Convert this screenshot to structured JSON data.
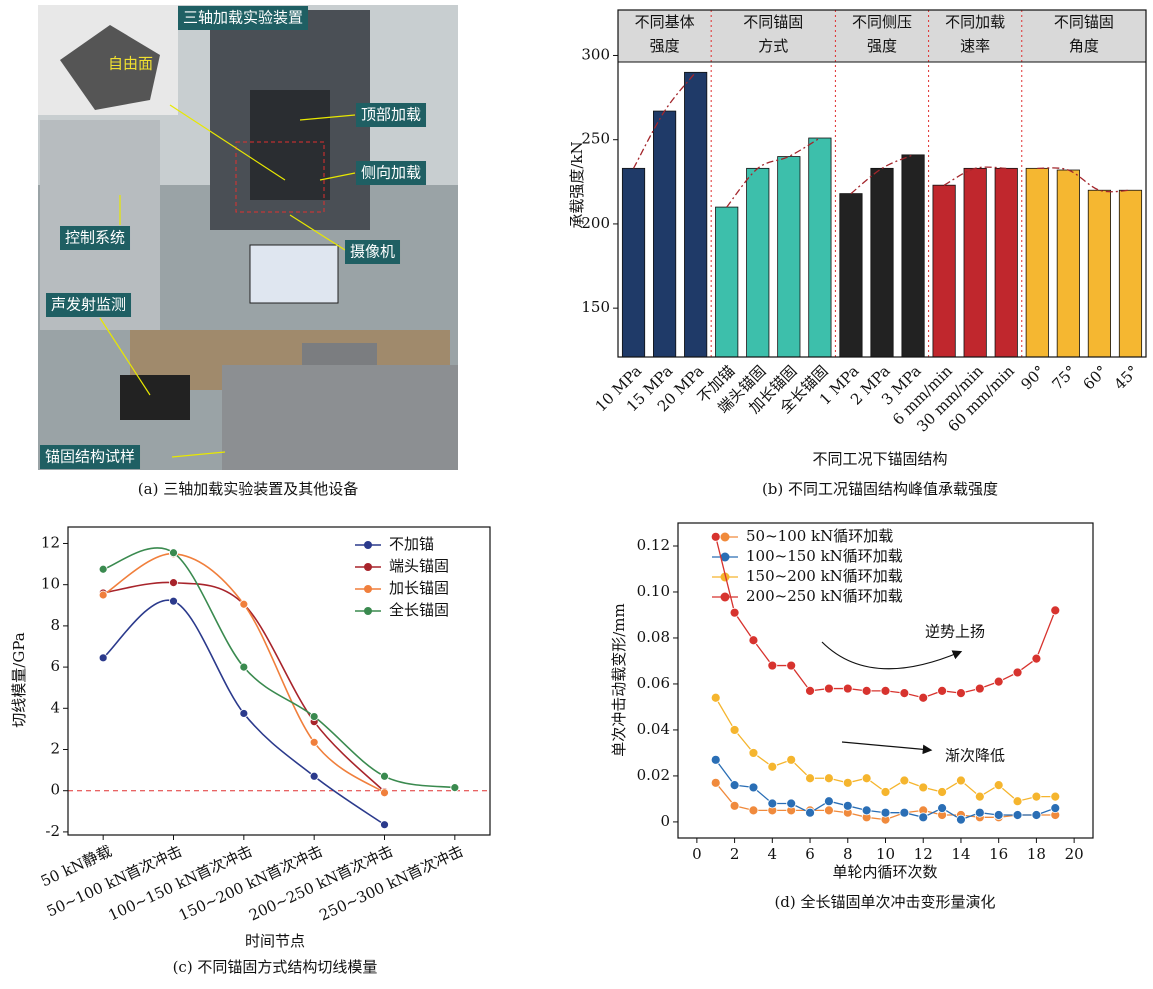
{
  "figure_a": {
    "labels": [
      "三轴加载实验装置",
      "自由面",
      "顶部加载",
      "侧向加载",
      "控制系统",
      "摄像机",
      "声发射监测",
      "锚固结构试样"
    ],
    "caption": "(a) 三轴加载实验装置及其他设备"
  },
  "chart_data": [
    {
      "type": "bar",
      "xlabel": "不同工况下锚固结构",
      "ylabel": "承载强度/kN",
      "caption": "(b) 不同工况锚固结构峰值承载强度",
      "ylim": [
        121,
        327
      ],
      "yticks": [
        150,
        200,
        250,
        300
      ],
      "trend_color": "#a3262c",
      "groups": [
        {
          "header": [
            "不同基体",
            "强度"
          ],
          "color": "#1f3a68",
          "categories": [
            "10 MPa",
            "15 MPa",
            "20 MPa"
          ],
          "values": [
            233,
            267,
            290
          ]
        },
        {
          "header": [
            "不同锚固",
            "方式"
          ],
          "color": "#3dbfab",
          "categories": [
            "不加锚",
            "端头锚固",
            "加长锚固",
            "全长锚固"
          ],
          "values": [
            210,
            233,
            240,
            251
          ]
        },
        {
          "header": [
            "不同侧压",
            "强度"
          ],
          "color": "#222222",
          "categories": [
            "1 MPa",
            "2 MPa",
            "3 MPa"
          ],
          "values": [
            218,
            233,
            241
          ]
        },
        {
          "header": [
            "不同加载",
            "速率"
          ],
          "color": "#c0272d",
          "categories": [
            "6 mm/min",
            "30 mm/min",
            "60 mm/min"
          ],
          "values": [
            223,
            233,
            233
          ]
        },
        {
          "header": [
            "不同锚固",
            "角度"
          ],
          "color": "#f5b731",
          "categories": [
            "90°",
            "75°",
            "60°",
            "45°"
          ],
          "values": [
            233,
            232,
            220,
            220
          ]
        }
      ]
    },
    {
      "type": "line",
      "xlabel": "时间节点",
      "ylabel": "切线模量/GPa",
      "caption": "(c) 不同锚固方式结构切线模量",
      "categories": [
        "50 kN静载",
        "50~100 kN首次冲击",
        "100~150 kN首次冲击",
        "150~200 kN首次冲击",
        "200~250 kN首次冲击",
        "250~300 kN首次冲击"
      ],
      "ylim": [
        -2.15,
        12.8
      ],
      "yticks": [
        -2,
        0,
        2,
        4,
        6,
        8,
        10,
        12
      ],
      "hline": 0,
      "smooth": true,
      "series": [
        {
          "name": "不加锚",
          "color": "#2b3a8c",
          "values": [
            6.45,
            9.2,
            3.75,
            0.7,
            -1.65,
            null
          ]
        },
        {
          "name": "端头锚固",
          "color": "#a8242b",
          "values": [
            9.6,
            10.1,
            9.05,
            3.35,
            -0.05,
            null
          ]
        },
        {
          "name": "加长锚固",
          "color": "#f07f3c",
          "values": [
            9.5,
            11.5,
            9.05,
            2.35,
            -0.1,
            null
          ]
        },
        {
          "name": "全长锚固",
          "color": "#3a8a4f",
          "values": [
            10.75,
            11.55,
            6.0,
            3.6,
            0.7,
            0.15
          ]
        }
      ]
    },
    {
      "type": "scatter-line",
      "xlabel": "单轮内循环次数",
      "ylabel": "单次冲击动载变形/mm",
      "caption": "(d) 全长锚固单次冲击变形量演化",
      "x": [
        1,
        2,
        3,
        4,
        5,
        6,
        7,
        8,
        9,
        10,
        11,
        12,
        13,
        14,
        15,
        16,
        17,
        18,
        19
      ],
      "xlim": [
        -1,
        21
      ],
      "xticks": [
        0,
        2,
        4,
        6,
        8,
        10,
        12,
        14,
        16,
        18,
        20
      ],
      "ylim": [
        -0.007,
        0.13
      ],
      "yticks": [
        0,
        0.02,
        0.04,
        0.06,
        0.08,
        {
          "value": 0.1,
          "label": "0.10"
        },
        0.12
      ],
      "annotations": [
        "逆势上扬",
        "渐次降低"
      ],
      "series": [
        {
          "name": "50~100 kN循环加载",
          "color": "#f08a3c",
          "values": [
            0.017,
            0.007,
            0.005,
            0.005,
            0.005,
            0.005,
            0.005,
            0.004,
            0.002,
            0.001,
            0.004,
            0.005,
            0.003,
            0.003,
            0.002,
            0.002,
            0.003,
            0.003,
            0.003
          ]
        },
        {
          "name": "100~150 kN循环加载",
          "color": "#2a6eb5",
          "values": [
            0.027,
            0.016,
            0.015,
            0.008,
            0.008,
            0.004,
            0.009,
            0.007,
            0.005,
            0.004,
            0.004,
            0.002,
            0.006,
            0.001,
            0.004,
            0.003,
            0.003,
            0.003,
            0.006
          ]
        },
        {
          "name": "150~200 kN循环加载",
          "color": "#f5b52e",
          "values": [
            0.054,
            0.04,
            0.03,
            0.024,
            0.027,
            0.019,
            0.019,
            0.017,
            0.019,
            0.013,
            0.018,
            0.015,
            0.013,
            0.018,
            0.011,
            0.016,
            0.009,
            0.011,
            0.011
          ]
        },
        {
          "name": "200~250 kN循环加载",
          "color": "#d7332e",
          "values": [
            0.124,
            0.091,
            0.079,
            0.068,
            0.068,
            0.057,
            0.058,
            0.058,
            0.057,
            0.057,
            0.056,
            0.054,
            0.057,
            0.056,
            0.058,
            0.061,
            0.065,
            0.071,
            0.092
          ]
        }
      ]
    }
  ]
}
